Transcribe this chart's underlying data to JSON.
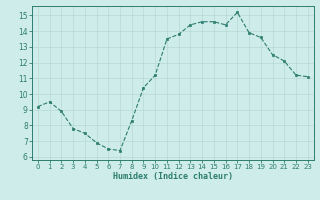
{
  "x": [
    0,
    1,
    2,
    3,
    4,
    5,
    6,
    7,
    8,
    9,
    10,
    11,
    12,
    13,
    14,
    15,
    16,
    17,
    18,
    19,
    20,
    21,
    22,
    23
  ],
  "y": [
    9.2,
    9.5,
    8.9,
    7.8,
    7.5,
    6.9,
    6.5,
    6.4,
    8.3,
    10.4,
    11.2,
    13.5,
    13.8,
    14.4,
    14.6,
    14.6,
    14.4,
    15.2,
    13.9,
    13.6,
    12.5,
    12.1,
    11.2,
    11.1
  ],
  "xlabel": "Humidex (Indice chaleur)",
  "ylim": [
    5.8,
    15.6
  ],
  "xlim": [
    -0.5,
    23.5
  ],
  "yticks": [
    6,
    7,
    8,
    9,
    10,
    11,
    12,
    13,
    14,
    15
  ],
  "xticks": [
    0,
    1,
    2,
    3,
    4,
    5,
    6,
    7,
    8,
    9,
    10,
    11,
    12,
    13,
    14,
    15,
    16,
    17,
    18,
    19,
    20,
    21,
    22,
    23
  ],
  "line_color": "#2d7d6e",
  "marker_color": "#2d7d6e",
  "bg_color": "#ceecea",
  "grid_color": "#b8d8d4",
  "axes_color": "#2d7d6e"
}
